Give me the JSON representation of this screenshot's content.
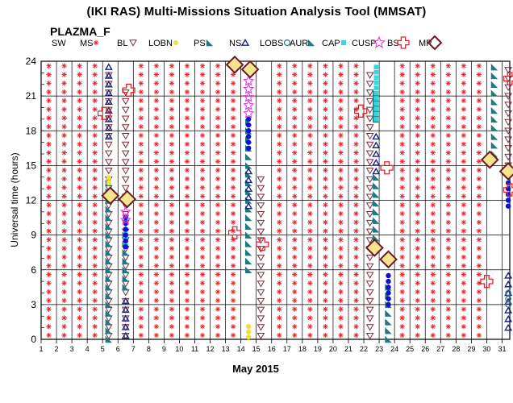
{
  "header": {
    "title": "(IKI RAS) Multi-Missions Situation Analysis Tool (MMSAT)",
    "subtitle": "PLAZMA_F"
  },
  "legend": [
    {
      "label": "SW",
      "icon": "none"
    },
    {
      "label": "MS",
      "icon": "asterisk-icon",
      "color": "#e8202a"
    },
    {
      "label": "BL",
      "icon": "triangle-down-outline-icon",
      "color": "#7a2a3a"
    },
    {
      "label": "LOBN",
      "icon": "dot-icon",
      "color": "#f0e040"
    },
    {
      "label": "PS",
      "icon": "teal-triangle-icon",
      "color": "#1f7a80"
    },
    {
      "label": "NS",
      "icon": "triangle-up-outline-icon",
      "color": "#1a237e"
    },
    {
      "label": "LOBS",
      "icon": "circle-outline-icon",
      "color": "#1f7a80"
    },
    {
      "label": "AUR",
      "icon": "teal-triangle-icon",
      "color": "#1f7a80"
    },
    {
      "label": "CAP",
      "icon": "square-icon",
      "color": "#36d6e0"
    },
    {
      "label": "CUSP",
      "icon": "star-outline-icon",
      "color": "#e040e0"
    },
    {
      "label": "BS",
      "icon": "cross-outline-icon",
      "color": "#e8202a"
    },
    {
      "label": "MP",
      "icon": "diamond-outline-icon",
      "color": "#6a1a2a"
    }
  ],
  "chart_data": {
    "type": "scatter",
    "title": "(IKI RAS) Multi-Missions Situation Analysis Tool (MMSAT)",
    "subtitle": "PLAZMA_F",
    "xlabel": "May 2015",
    "ylabel": "Universal time (hours)",
    "xlim": [
      1,
      31.5
    ],
    "ylim": [
      0,
      24
    ],
    "x_ticks": [
      "1",
      "2",
      "3",
      "4",
      "5",
      "6",
      "7",
      "8",
      "9",
      "10",
      "11",
      "12",
      "13",
      "14",
      "15",
      "16",
      "17",
      "18",
      "19",
      "20",
      "21",
      "22",
      "23",
      "24",
      "25",
      "26",
      "27",
      "28",
      "29",
      "30",
      "31"
    ],
    "y_ticks": [
      0,
      3,
      6,
      9,
      12,
      15,
      18,
      21,
      24
    ],
    "grid": true,
    "legend_position": "top",
    "series": [
      {
        "name": "MS",
        "default_fill_all_other_columns": true
      },
      {
        "name": "BL",
        "points": [
          {
            "day": 5.4,
            "from": 0.3,
            "to": 23.5
          },
          {
            "day": 6.5,
            "from": 0.3,
            "to": 21.5
          },
          {
            "day": 15.3,
            "from": 0.3,
            "to": 14.5
          },
          {
            "day": 22.4,
            "from": 0.3,
            "to": 23.5
          },
          {
            "day": 31.4,
            "from": 15,
            "to": 23.5
          }
        ]
      },
      {
        "name": "PS",
        "points": [
          {
            "day": 5.4,
            "from": 0,
            "to": 13.5
          },
          {
            "day": 6.5,
            "from": 4.5,
            "to": 9.5
          },
          {
            "day": 14.5,
            "from": 6,
            "to": 19
          },
          {
            "day": 22.8,
            "from": 8,
            "to": 14
          },
          {
            "day": 23.6,
            "from": 0,
            "to": 5
          },
          {
            "day": 30.5,
            "from": 16,
            "to": 24
          }
        ]
      },
      {
        "name": "NS",
        "points": [
          {
            "day": 5.4,
            "from": 17.5,
            "to": 23.5
          },
          {
            "day": 6.5,
            "from": 0.3,
            "to": 4
          },
          {
            "day": 14.5,
            "from": 11.5,
            "to": 15
          },
          {
            "day": 22.8,
            "from": 14.5,
            "to": 18
          },
          {
            "day": 31.4,
            "from": 1,
            "to": 6
          }
        ]
      },
      {
        "name": "LOBN",
        "points": [
          {
            "day": 5.4,
            "from": 13.5,
            "to": 14.3
          },
          {
            "day": 14.5,
            "from": 0.2,
            "to": 1.5
          }
        ]
      },
      {
        "name": "LOBS",
        "points": [
          {
            "day": 31.4,
            "from": 3,
            "to": 4
          }
        ]
      },
      {
        "name": "AUR",
        "points": [
          {
            "day": 22.8,
            "from": 19,
            "to": 21.5
          }
        ]
      },
      {
        "name": "CAP",
        "points": [
          {
            "day": 6.5,
            "from": 8.3,
            "to": 9.3
          },
          {
            "day": 22.8,
            "from": 19,
            "to": 23.5
          }
        ]
      },
      {
        "name": "CUSP",
        "points": [
          {
            "day": 6.5,
            "from": 10.3,
            "to": 11.2
          },
          {
            "day": 14.5,
            "from": 19.5,
            "to": 22.5
          }
        ]
      },
      {
        "name": "BS",
        "points": [
          {
            "day": 5.1,
            "y": 19.5
          },
          {
            "day": 6.7,
            "y": 21.5
          },
          {
            "day": 13.6,
            "y": 9.2
          },
          {
            "day": 15.4,
            "y": 8.2
          },
          {
            "day": 21.8,
            "y": 19.7
          },
          {
            "day": 23.5,
            "y": 14.8
          },
          {
            "day": 30.0,
            "y": 5.0
          },
          {
            "day": 31.5,
            "y": 22.5
          },
          {
            "day": 31.5,
            "y": 12.9
          }
        ]
      },
      {
        "name": "MP",
        "points": [
          {
            "day": 5.5,
            "y": 12.4
          },
          {
            "day": 6.6,
            "y": 12.1
          },
          {
            "day": 13.6,
            "y": 23.7
          },
          {
            "day": 14.6,
            "y": 23.3
          },
          {
            "day": 22.7,
            "y": 7.9
          },
          {
            "day": 23.6,
            "y": 6.9
          },
          {
            "day": 30.2,
            "y": 15.5
          },
          {
            "day": 31.4,
            "y": 14.5
          }
        ]
      },
      {
        "name": "Dots",
        "color": "#1010d0",
        "points": [
          {
            "day": 6.5,
            "from": 8,
            "to": 10.5
          },
          {
            "day": 14.5,
            "from": 16.5,
            "to": 19
          },
          {
            "day": 23.6,
            "from": 3,
            "to": 5.5
          },
          {
            "day": 31.4,
            "from": 11.5,
            "to": 13.5
          }
        ]
      }
    ]
  }
}
